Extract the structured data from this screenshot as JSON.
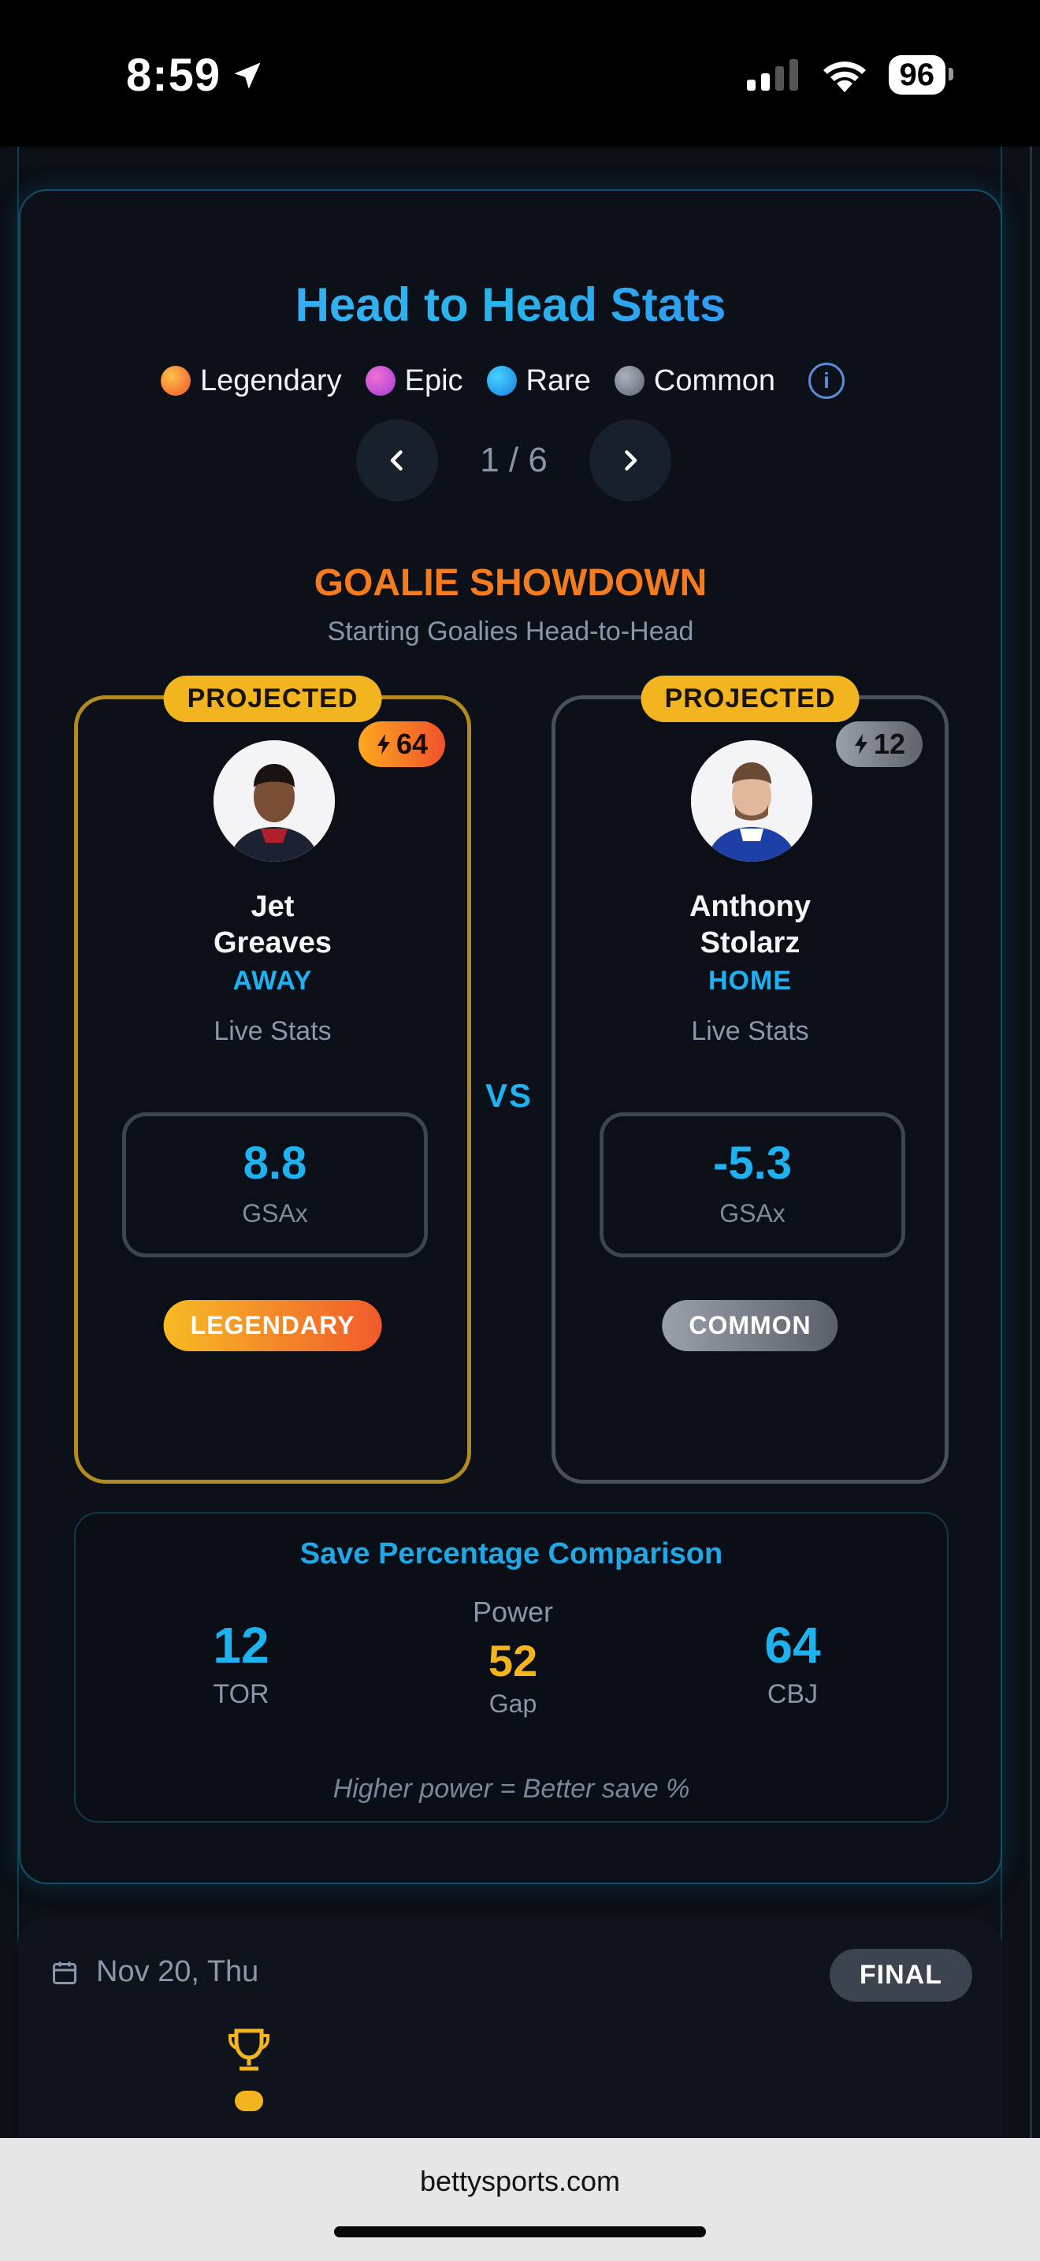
{
  "status": {
    "time": "8:59",
    "battery": "96"
  },
  "header": {
    "title": "Head to Head Stats"
  },
  "legend": [
    {
      "label": "Legendary",
      "color": "#f27a2c"
    },
    {
      "label": "Epic",
      "color": "#c34fd6"
    },
    {
      "label": "Rare",
      "color": "#1fa2ee"
    },
    {
      "label": "Common",
      "color": "#7a818c"
    }
  ],
  "pager": {
    "current": "1 / 6"
  },
  "section": {
    "title": "GOALIE SHOWDOWN",
    "subtitle": "Starting Goalies Head-to-Head"
  },
  "players": {
    "away": {
      "badge": "PROJECTED",
      "rating": "64",
      "name_first": "Jet",
      "name_last": "Greaves",
      "side": "AWAY",
      "live": "Live Stats",
      "stat_value": "8.8",
      "stat_label": "GSAx",
      "rarity": "LEGENDARY"
    },
    "home": {
      "badge": "PROJECTED",
      "rating": "12",
      "name_first": "Anthony",
      "name_last": "Stolarz",
      "side": "HOME",
      "live": "Live Stats",
      "stat_value": "-5.3",
      "stat_label": "GSAx",
      "rarity": "COMMON"
    }
  },
  "vs": "VS",
  "comparison": {
    "title": "Save Percentage Comparison",
    "left": {
      "value": "12",
      "team": "TOR"
    },
    "right": {
      "value": "64",
      "team": "CBJ"
    },
    "power_label": "Power",
    "gap_value": "52",
    "gap_label": "Gap",
    "note": "Higher power = Better save %"
  },
  "next_game": {
    "date": "Nov 20, Thu",
    "status": "FINAL"
  },
  "browser": {
    "url": "bettysports.com"
  }
}
